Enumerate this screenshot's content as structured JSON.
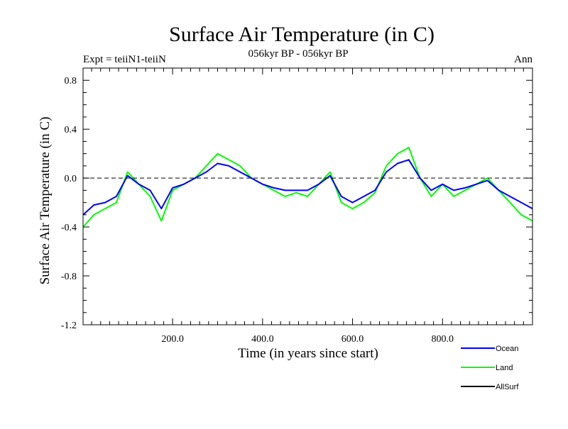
{
  "chart_data": {
    "type": "line",
    "title": "Surface Air Temperature (in C)",
    "subtitle_left": "Expt = teiiN1-teiiN",
    "subtitle_center": "056kyr BP - 056kyr BP",
    "subtitle_right": "Ann",
    "xlabel": "Time (in years since start)",
    "ylabel": "Surface Air Temperature (in C)",
    "xlim": [
      1,
      1000
    ],
    "ylim": [
      -1.2,
      0.9
    ],
    "x_ticks": [
      200,
      400,
      600,
      800
    ],
    "x_tick_labels": [
      "200.0",
      "400.0",
      "600.0",
      "800.0"
    ],
    "y_ticks": [
      0.8,
      0.4,
      0.0,
      -0.4,
      -0.8,
      -1.2
    ],
    "y_tick_labels": [
      "0.8",
      "0.4",
      "0.0",
      "-0.4",
      "-0.8",
      "-1.2"
    ],
    "reference_line": 0.0,
    "legend_position": "bottom-right",
    "series": [
      {
        "name": "Ocean",
        "color": "#0000ff",
        "x": [
          1,
          25,
          50,
          75,
          100,
          125,
          150,
          175,
          200,
          225,
          250,
          275,
          300,
          325,
          350,
          375,
          400,
          425,
          450,
          475,
          500,
          525,
          550,
          575,
          600,
          625,
          650,
          675,
          700,
          725,
          750,
          775,
          800,
          825,
          850,
          875,
          900,
          925,
          950,
          975,
          1000
        ],
        "y": [
          -0.3,
          -0.22,
          -0.2,
          -0.15,
          0.02,
          -0.05,
          -0.1,
          -0.25,
          -0.08,
          -0.05,
          0.0,
          0.05,
          0.12,
          0.1,
          0.05,
          0.0,
          -0.05,
          -0.08,
          -0.1,
          -0.1,
          -0.1,
          -0.05,
          0.02,
          -0.15,
          -0.2,
          -0.15,
          -0.1,
          0.05,
          0.12,
          0.15,
          0.0,
          -0.1,
          -0.05,
          -0.1,
          -0.08,
          -0.05,
          -0.02,
          -0.1,
          -0.15,
          -0.2,
          -0.25
        ]
      },
      {
        "name": "Land",
        "color": "#00ff00",
        "x": [
          1,
          25,
          50,
          75,
          100,
          125,
          150,
          175,
          200,
          225,
          250,
          275,
          300,
          325,
          350,
          375,
          400,
          425,
          450,
          475,
          500,
          525,
          550,
          575,
          600,
          625,
          650,
          675,
          700,
          725,
          750,
          775,
          800,
          825,
          850,
          875,
          900,
          925,
          950,
          975,
          1000
        ],
        "y": [
          -0.4,
          -0.3,
          -0.25,
          -0.2,
          0.05,
          -0.05,
          -0.15,
          -0.35,
          -0.1,
          -0.05,
          0.0,
          0.1,
          0.2,
          0.15,
          0.1,
          0.0,
          -0.05,
          -0.1,
          -0.15,
          -0.12,
          -0.15,
          -0.05,
          0.05,
          -0.2,
          -0.25,
          -0.2,
          -0.12,
          0.1,
          0.2,
          0.25,
          0.0,
          -0.15,
          -0.05,
          -0.15,
          -0.1,
          -0.05,
          0.0,
          -0.1,
          -0.2,
          -0.3,
          -0.35
        ]
      },
      {
        "name": "AllSurf",
        "color": "#000000",
        "x": [],
        "y": []
      }
    ]
  }
}
